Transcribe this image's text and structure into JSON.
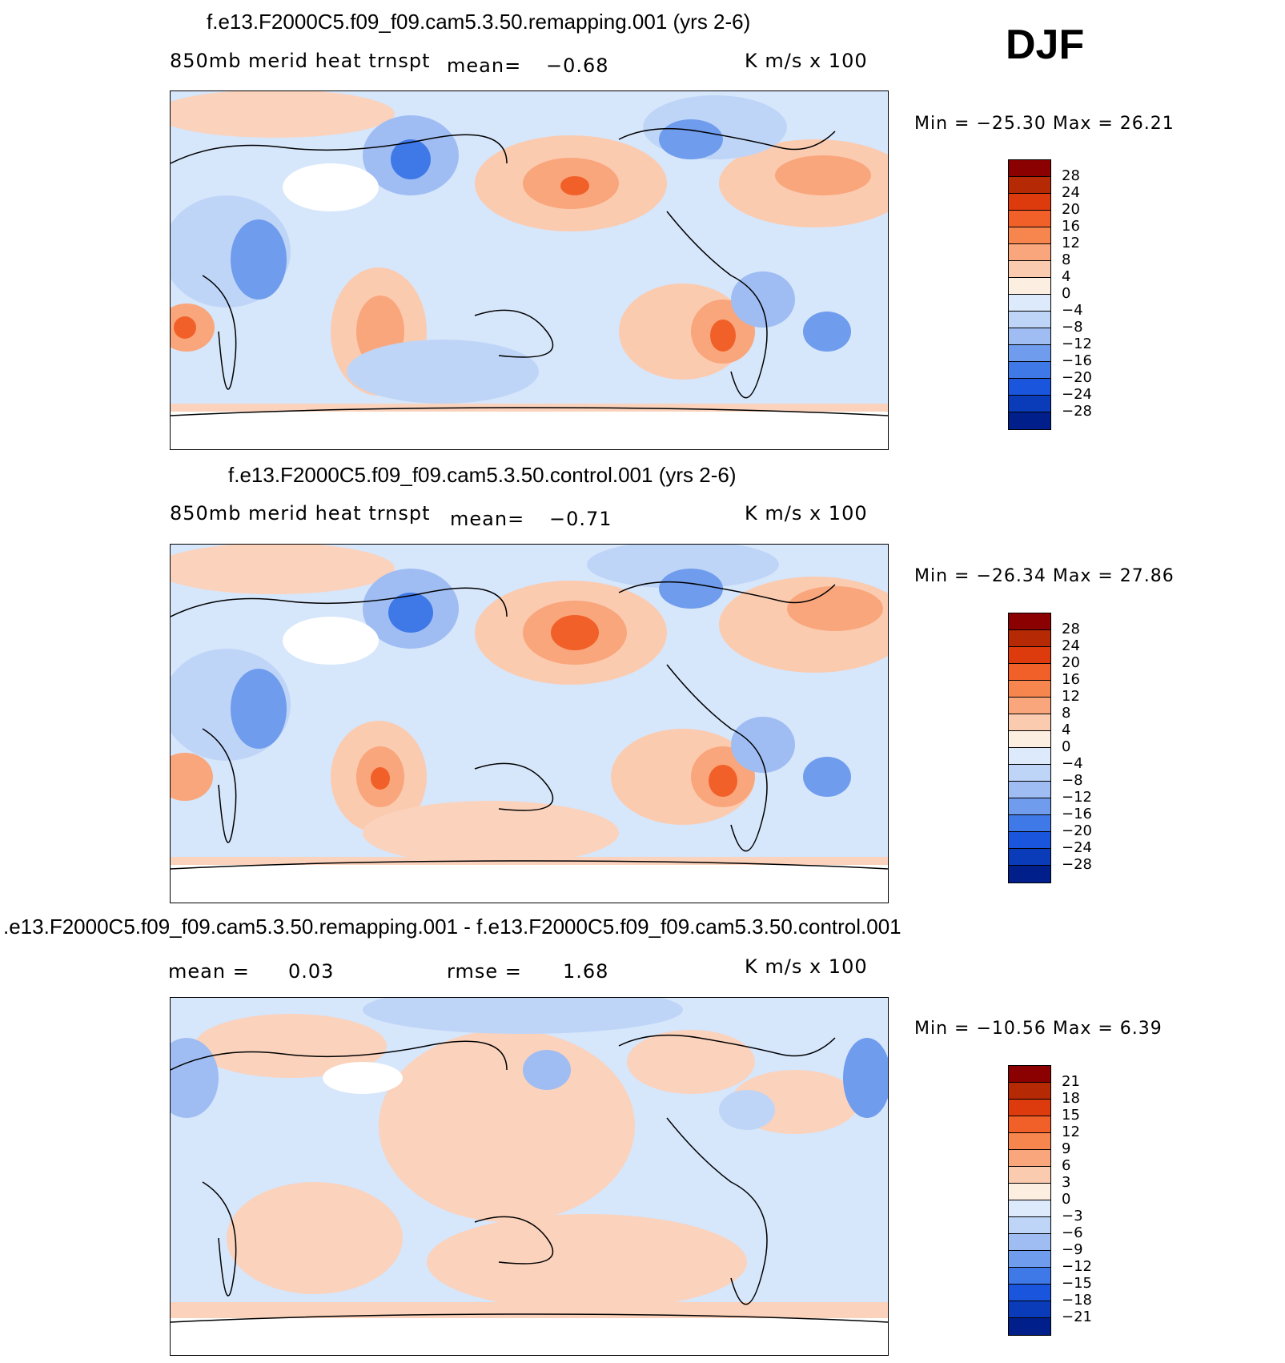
{
  "season": "DJF",
  "panels": [
    {
      "id": "remapping",
      "title": "f.e13.F2000C5.f09_f09.cam5.3.50.remapping.001 (yrs 2-6)",
      "variable": "850mb merid heat trnspt",
      "stat_label": "mean=",
      "stat_value": "−0.68",
      "units": "K m/s x 100",
      "min_max": "Min = −25.30  Max =  26.21",
      "colorbar": {
        "labels": [
          "28",
          "24",
          "20",
          "16",
          "12",
          "8",
          "4",
          "0",
          "−4",
          "−8",
          "−12",
          "−16",
          "−20",
          "−24",
          "−28"
        ],
        "colors": [
          "#8b0000",
          "#b52a05",
          "#dd3a0e",
          "#f2602a",
          "#f7854e",
          "#f9a67c",
          "#fbcbb0",
          "#fdeee2",
          "#dceafb",
          "#bfd5f7",
          "#9fbdf3",
          "#6f9ced",
          "#3f79e8",
          "#1a55dd",
          "#0a3bb8",
          "#001f8a"
        ]
      }
    },
    {
      "id": "control",
      "title": "f.e13.F2000C5.f09_f09.cam5.3.50.control.001 (yrs 2-6)",
      "variable": "850mb merid heat trnspt",
      "stat_label": "mean=",
      "stat_value": "−0.71",
      "units": "K m/s x 100",
      "min_max": "Min = −26.34  Max =  27.86",
      "colorbar": {
        "labels": [
          "28",
          "24",
          "20",
          "16",
          "12",
          "8",
          "4",
          "0",
          "−4",
          "−8",
          "−12",
          "−16",
          "−20",
          "−24",
          "−28"
        ],
        "colors": [
          "#8b0000",
          "#b52a05",
          "#dd3a0e",
          "#f2602a",
          "#f7854e",
          "#f9a67c",
          "#fbcbb0",
          "#fdeee2",
          "#dceafb",
          "#bfd5f7",
          "#9fbdf3",
          "#6f9ced",
          "#3f79e8",
          "#1a55dd",
          "#0a3bb8",
          "#001f8a"
        ]
      }
    },
    {
      "id": "difference",
      "title": ".e13.F2000C5.f09_f09.cam5.3.50.remapping.001 - f.e13.F2000C5.f09_f09.cam5.3.50.control.001",
      "mean_label": "mean =",
      "mean_value": "0.03",
      "rmse_label": "rmse =",
      "rmse_value": "1.68",
      "units": "K m/s x 100",
      "min_max": "Min = −10.56  Max =    6.39",
      "colorbar": {
        "labels": [
          "21",
          "18",
          "15",
          "12",
          "9",
          "6",
          "3",
          "0",
          "−3",
          "−6",
          "−9",
          "−12",
          "−15",
          "−18",
          "−21"
        ],
        "colors": [
          "#8b0000",
          "#b52a05",
          "#dd3a0e",
          "#f2602a",
          "#f7854e",
          "#f9a67c",
          "#fbcbb0",
          "#fdeee2",
          "#dceafb",
          "#bfd5f7",
          "#9fbdf3",
          "#6f9ced",
          "#3f79e8",
          "#1a55dd",
          "#0a3bb8",
          "#001f8a"
        ]
      }
    }
  ]
}
